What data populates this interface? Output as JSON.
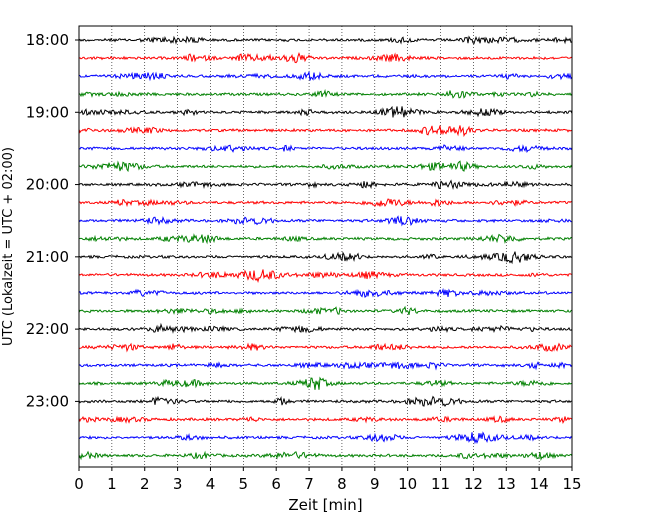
{
  "chart_data": {
    "type": "line",
    "title": "",
    "xlabel": "Zeit  [min]",
    "ylabel": "UTC (Lokalzeit = UTC + 02:00)",
    "xlim": [
      0,
      15
    ],
    "x_ticks": [
      "0",
      "1",
      "2",
      "3",
      "4",
      "5",
      "6",
      "7",
      "8",
      "9",
      "10",
      "11",
      "12",
      "13",
      "14",
      "15"
    ],
    "y_ticks": [
      "18:00",
      "19:00",
      "20:00",
      "21:00",
      "22:00",
      "23:00"
    ],
    "grid": "vertical dotted",
    "trace_interval_min": 15,
    "trace_start": "18:00",
    "trace_count": 24,
    "trace_colors": [
      "#000000",
      "#ff0000",
      "#0000ff",
      "#008000"
    ]
  }
}
